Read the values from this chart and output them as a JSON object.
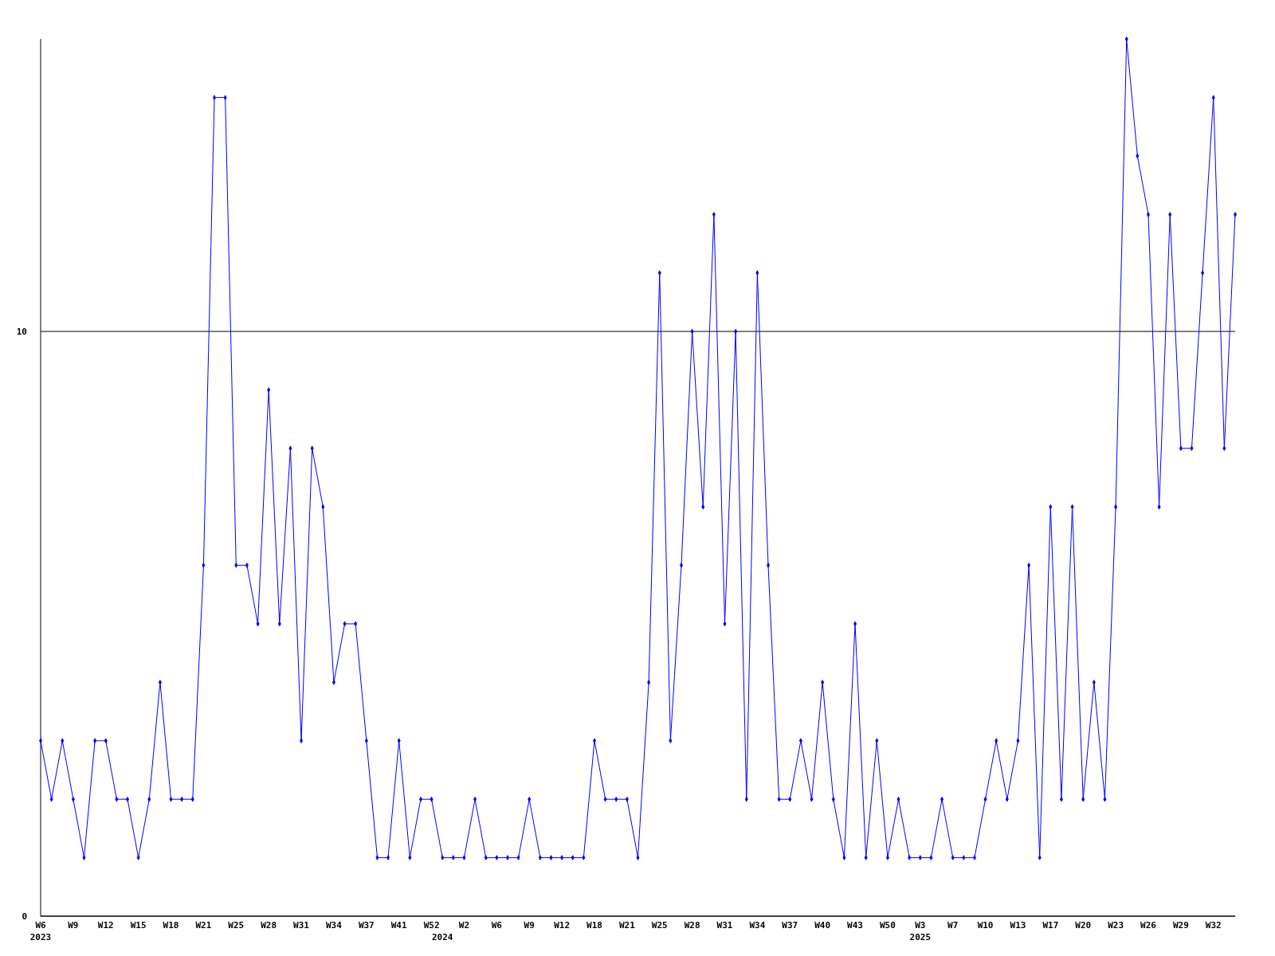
{
  "chart_data": {
    "type": "line",
    "categories": [
      "W6\n2023",
      null,
      null,
      "W9",
      null,
      null,
      "W12",
      null,
      null,
      "W15",
      null,
      null,
      "W18",
      null,
      null,
      "W21",
      null,
      null,
      "W25",
      null,
      null,
      "W28",
      null,
      null,
      "W31",
      null,
      null,
      "W34",
      null,
      null,
      "W37",
      null,
      null,
      "W41",
      null,
      null,
      "W52",
      "\n2024",
      null,
      "W2",
      null,
      null,
      "W6",
      null,
      null,
      "W9",
      null,
      null,
      "W12",
      null,
      null,
      "W18",
      null,
      null,
      "W21",
      null,
      null,
      "W25",
      null,
      null,
      "W28",
      null,
      null,
      "W31",
      null,
      null,
      "W34",
      null,
      null,
      "W37",
      null,
      null,
      "W40",
      null,
      null,
      "W43",
      null,
      null,
      "W50",
      null,
      null,
      "W3\n2025",
      null,
      null,
      "W7",
      null,
      null,
      "W10",
      null,
      null,
      "W13",
      null,
      null,
      "W17",
      null,
      null,
      "W20",
      null,
      null,
      "W23",
      null,
      null,
      "W26",
      null,
      null,
      "W29",
      null,
      null,
      "W32",
      null,
      null
    ],
    "series": [
      {
        "color": "#0000ff",
        "values": [
          3,
          2,
          3,
          2,
          1,
          3,
          3,
          2,
          2,
          1,
          2,
          4,
          2,
          2,
          2,
          6,
          14,
          14,
          6,
          6,
          5,
          9,
          5,
          8,
          3,
          8,
          7,
          4,
          5,
          5,
          3,
          1,
          1,
          3,
          1,
          2,
          2,
          1,
          1,
          1,
          2,
          1,
          1,
          1,
          1,
          2,
          1,
          1,
          1,
          1,
          1,
          3,
          2,
          2,
          2,
          1,
          4,
          11,
          3,
          6,
          10,
          7,
          12,
          5,
          10,
          2,
          11,
          6,
          2,
          2,
          3,
          2,
          4,
          2,
          1,
          5,
          1,
          3,
          1,
          2,
          1,
          1,
          1,
          2,
          1,
          1,
          1,
          2,
          3,
          2,
          3,
          6,
          1,
          7,
          2,
          7,
          2,
          4,
          2,
          7,
          15,
          13,
          12,
          7,
          12,
          8,
          8,
          11,
          14,
          8,
          12
        ]
      }
    ],
    "ylim": [
      0,
      15
    ],
    "yticks": [
      0,
      10
    ],
    "grid": "y",
    "marker": "diamond",
    "line_style": "solid"
  }
}
